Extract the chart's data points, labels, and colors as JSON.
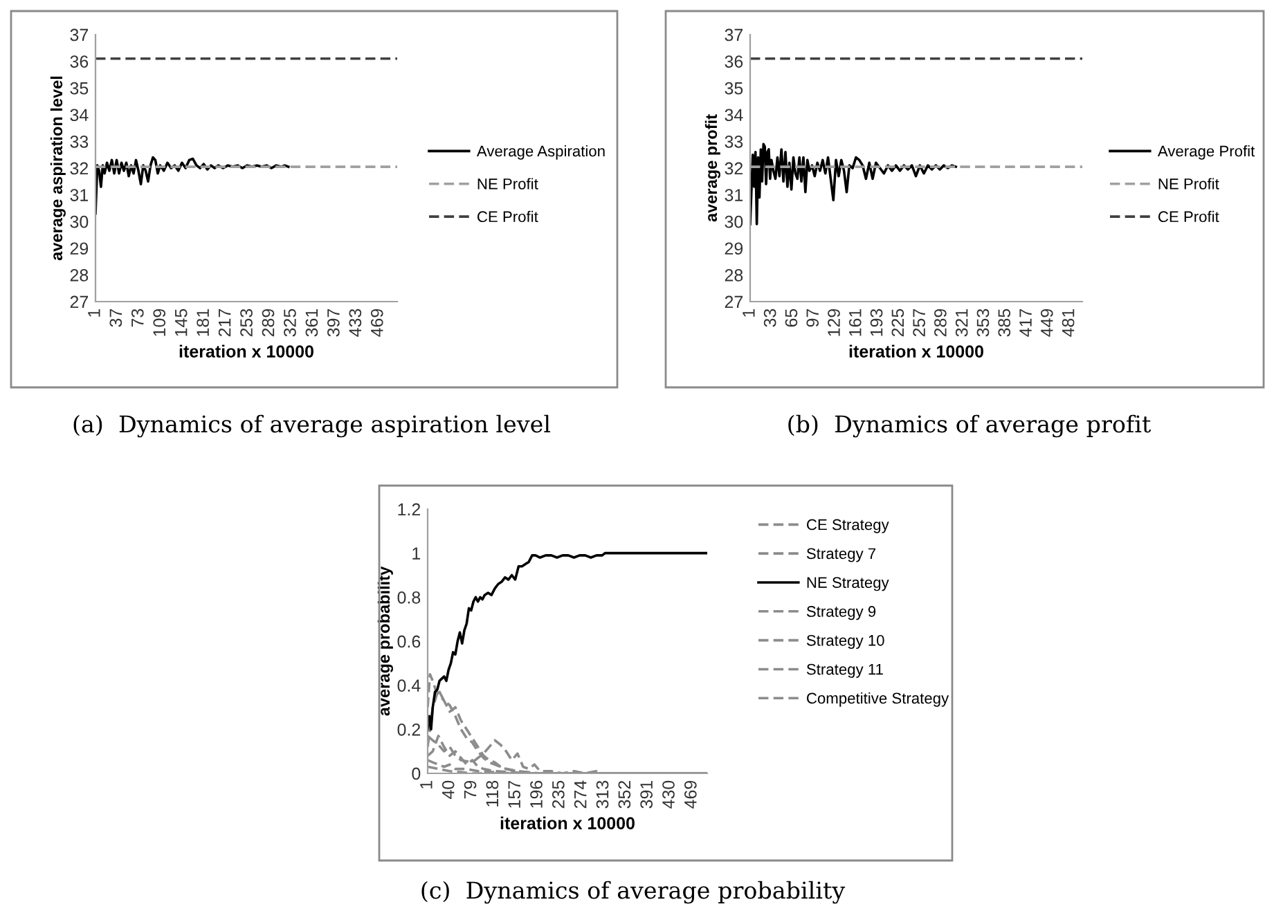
{
  "chart_data": [
    {
      "type": "line",
      "xlabel": "iteration x 10000",
      "ylabel": "average aspiration level",
      "xlim": [
        1,
        500
      ],
      "ylim": [
        27,
        37
      ],
      "xticks": [
        1,
        37,
        73,
        109,
        145,
        181,
        217,
        253,
        289,
        325,
        361,
        397,
        433,
        469
      ],
      "yticks": [
        27,
        28,
        29,
        30,
        31,
        32,
        33,
        34,
        35,
        36,
        37
      ],
      "grid": false,
      "legend": "right",
      "annotations": [
        "(a)  Dynamics of average aspiration level"
      ],
      "series": [
        {
          "name": "Average Aspiration",
          "color": "#000000",
          "line_style": "solid",
          "x": [
            1,
            4,
            7,
            10,
            13,
            16,
            20,
            24,
            28,
            32,
            36,
            40,
            44,
            48,
            52,
            56,
            60,
            64,
            68,
            72,
            76,
            80,
            84,
            88,
            92,
            96,
            100,
            104,
            108,
            114,
            120,
            126,
            132,
            138,
            144,
            150,
            156,
            162,
            168,
            174,
            180,
            186,
            192,
            198,
            204,
            212,
            220,
            228,
            236,
            244,
            252,
            260,
            268,
            276,
            284,
            292,
            300,
            308,
            314,
            320
          ],
          "values": [
            30.3,
            32.1,
            31.9,
            31.3,
            32.1,
            31.8,
            32.2,
            31.9,
            32.3,
            31.8,
            32.3,
            31.8,
            32.2,
            31.9,
            32.2,
            31.7,
            32.1,
            31.8,
            32.3,
            31.9,
            31.4,
            32.1,
            31.9,
            31.5,
            32.1,
            32.4,
            32.3,
            31.8,
            32.1,
            31.9,
            32.2,
            32.0,
            32.1,
            31.9,
            32.2,
            32.0,
            32.3,
            32.35,
            32.1,
            32.0,
            32.15,
            31.95,
            32.1,
            32.0,
            32.1,
            32.0,
            32.1,
            32.05,
            32.1,
            32.0,
            32.1,
            32.05,
            32.1,
            32.05,
            32.1,
            32.0,
            32.1,
            32.05,
            32.1,
            32.05
          ]
        },
        {
          "name": "NE Profit",
          "color": "#a0a0a0",
          "line_style": "dashed",
          "x": [
            1,
            500
          ],
          "values": [
            32.05,
            32.05
          ]
        },
        {
          "name": "CE Profit",
          "color": "#404040",
          "line_style": "dashed",
          "x": [
            1,
            500
          ],
          "values": [
            36.1,
            36.1
          ]
        }
      ]
    },
    {
      "type": "line",
      "xlabel": "iteration x 10000",
      "ylabel": "average profit",
      "xlim": [
        1,
        500
      ],
      "ylim": [
        27,
        37
      ],
      "xticks": [
        1,
        33,
        65,
        97,
        129,
        161,
        193,
        225,
        257,
        289,
        321,
        353,
        385,
        417,
        449,
        481
      ],
      "yticks": [
        27,
        28,
        29,
        30,
        31,
        32,
        33,
        34,
        35,
        36,
        37
      ],
      "grid": false,
      "legend": "right",
      "annotations": [
        "(b)  Dynamics of average profit"
      ],
      "series": [
        {
          "name": "Average Profit",
          "color": "#000000",
          "line_style": "solid",
          "x": [
            1,
            3,
            5,
            7,
            9,
            11,
            13,
            15,
            17,
            19,
            21,
            23,
            25,
            27,
            29,
            31,
            33,
            36,
            39,
            42,
            45,
            48,
            51,
            54,
            57,
            60,
            63,
            66,
            69,
            72,
            75,
            78,
            81,
            84,
            87,
            90,
            94,
            98,
            102,
            106,
            110,
            114,
            118,
            122,
            126,
            130,
            134,
            138,
            142,
            146,
            150,
            155,
            160,
            165,
            170,
            175,
            180,
            185,
            190,
            196,
            202,
            208,
            214,
            220,
            226,
            232,
            238,
            244,
            250,
            256,
            262,
            268,
            274,
            280,
            286,
            292,
            298,
            304,
            310
          ],
          "values": [
            29.9,
            31.2,
            32.5,
            31.3,
            32.6,
            29.9,
            32.4,
            30.9,
            32.7,
            31.5,
            32.9,
            32.8,
            31.4,
            32.6,
            32.7,
            31.6,
            32.3,
            31.9,
            31.6,
            32.4,
            31.7,
            32.7,
            31.5,
            32.6,
            31.3,
            32.2,
            31.2,
            32.4,
            31.8,
            31.6,
            32.4,
            31.5,
            32.4,
            31.1,
            32.3,
            31.9,
            32.1,
            31.7,
            32.2,
            31.9,
            32.3,
            31.8,
            32.4,
            31.6,
            30.8,
            32.3,
            31.7,
            32.3,
            31.9,
            31.1,
            32.1,
            32.0,
            32.4,
            32.3,
            32.1,
            31.6,
            32.2,
            31.6,
            32.2,
            32.0,
            31.8,
            32.1,
            31.9,
            32.1,
            31.9,
            32.1,
            31.95,
            32.1,
            31.7,
            32.1,
            31.8,
            32.1,
            31.95,
            32.1,
            31.95,
            32.1,
            32.0,
            32.1,
            32.05
          ]
        },
        {
          "name": "NE Profit",
          "color": "#a0a0a0",
          "line_style": "dashed",
          "x": [
            1,
            500
          ],
          "values": [
            32.05,
            32.05
          ]
        },
        {
          "name": "CE Profit",
          "color": "#404040",
          "line_style": "dashed",
          "x": [
            1,
            500
          ],
          "values": [
            36.1,
            36.1
          ]
        }
      ]
    },
    {
      "type": "line",
      "xlabel": "iteration x 10000",
      "ylabel": "average probability",
      "xlim": [
        1,
        496
      ],
      "ylim": [
        0,
        1.2
      ],
      "xticks": [
        1,
        40,
        79,
        118,
        157,
        196,
        235,
        274,
        313,
        352,
        391,
        430,
        469
      ],
      "yticks": [
        0,
        0.2,
        0.4,
        0.6,
        0.8,
        1,
        1.2
      ],
      "grid": false,
      "legend": "right",
      "annotations": [
        "(c)  Dynamics of average probability"
      ],
      "series": [
        {
          "name": "CE Strategy",
          "color": "#8c8c8c",
          "line_style": "dashed",
          "x": [
            1,
            5,
            10,
            15,
            20,
            30,
            40,
            50,
            60,
            70,
            80,
            90,
            100,
            110,
            120,
            130,
            140,
            160,
            180,
            200,
            496
          ],
          "values": [
            0.3,
            0.45,
            0.42,
            0.38,
            0.36,
            0.33,
            0.28,
            0.3,
            0.24,
            0.2,
            0.16,
            0.12,
            0.08,
            0.06,
            0.05,
            0.03,
            0.02,
            0.01,
            0.005,
            0,
            0
          ]
        },
        {
          "name": "Strategy 7",
          "color": "#8c8c8c",
          "line_style": "dashed",
          "x": [
            1,
            10,
            20,
            30,
            40,
            50,
            60,
            70,
            80,
            90,
            100,
            110,
            120,
            140,
            160,
            190,
            496
          ],
          "values": [
            0.12,
            0.3,
            0.38,
            0.33,
            0.31,
            0.26,
            0.2,
            0.16,
            0.14,
            0.1,
            0.07,
            0.05,
            0.04,
            0.02,
            0.01,
            0,
            0
          ]
        },
        {
          "name": "NE Strategy",
          "color": "#000000",
          "line_style": "solid",
          "x": [
            1,
            4,
            7,
            10,
            14,
            18,
            22,
            26,
            30,
            34,
            38,
            42,
            46,
            50,
            54,
            58,
            62,
            66,
            70,
            74,
            78,
            82,
            86,
            90,
            94,
            98,
            102,
            108,
            114,
            120,
            126,
            132,
            138,
            144,
            150,
            156,
            162,
            168,
            174,
            180,
            186,
            192,
            200,
            210,
            220,
            230,
            240,
            250,
            260,
            270,
            280,
            290,
            300,
            310,
            315,
            496
          ],
          "values": [
            0.2,
            0.26,
            0.2,
            0.3,
            0.37,
            0.38,
            0.42,
            0.43,
            0.44,
            0.42,
            0.47,
            0.5,
            0.55,
            0.54,
            0.6,
            0.64,
            0.59,
            0.65,
            0.68,
            0.75,
            0.74,
            0.78,
            0.8,
            0.78,
            0.8,
            0.79,
            0.81,
            0.82,
            0.81,
            0.84,
            0.86,
            0.87,
            0.89,
            0.88,
            0.9,
            0.88,
            0.94,
            0.94,
            0.95,
            0.96,
            0.99,
            0.99,
            0.98,
            0.99,
            0.99,
            0.98,
            0.99,
            0.99,
            0.98,
            0.99,
            0.99,
            0.98,
            0.99,
            0.99,
            1.0,
            1.0
          ]
        },
        {
          "name": "Strategy 9",
          "color": "#8c8c8c",
          "line_style": "dashed",
          "x": [
            1,
            10,
            20,
            30,
            40,
            50,
            60,
            80,
            100,
            110,
            120,
            130,
            140,
            150,
            160,
            170,
            180,
            190,
            200,
            220,
            240,
            260,
            280,
            300,
            310,
            496
          ],
          "values": [
            0.17,
            0.15,
            0.13,
            0.1,
            0.12,
            0.08,
            0.06,
            0.05,
            0.09,
            0.12,
            0.15,
            0.13,
            0.1,
            0.06,
            0.09,
            0.03,
            0.02,
            0.04,
            0.01,
            0.01,
            0,
            0.01,
            0,
            0.01,
            0,
            0
          ]
        },
        {
          "name": "Strategy 10",
          "color": "#8c8c8c",
          "line_style": "dashed",
          "x": [
            1,
            10,
            20,
            30,
            40,
            50,
            60,
            70,
            80,
            90,
            100,
            120,
            150,
            180,
            496
          ],
          "values": [
            0.08,
            0.1,
            0.17,
            0.12,
            0.08,
            0.1,
            0.07,
            0.04,
            0.06,
            0.03,
            0.02,
            0.01,
            0.005,
            0,
            0
          ]
        },
        {
          "name": "Strategy 11",
          "color": "#8c8c8c",
          "line_style": "dashed",
          "x": [
            1,
            10,
            20,
            30,
            40,
            50,
            70,
            90,
            120,
            150,
            496
          ],
          "values": [
            0.06,
            0.05,
            0.04,
            0.03,
            0.04,
            0.02,
            0.02,
            0.01,
            0.005,
            0,
            0
          ]
        },
        {
          "name": "Competitive Strategy",
          "color": "#8c8c8c",
          "line_style": "dashed",
          "x": [
            1,
            20,
            40,
            60,
            80,
            496
          ],
          "values": [
            0.03,
            0.02,
            0.01,
            0.005,
            0,
            0
          ]
        }
      ]
    }
  ]
}
